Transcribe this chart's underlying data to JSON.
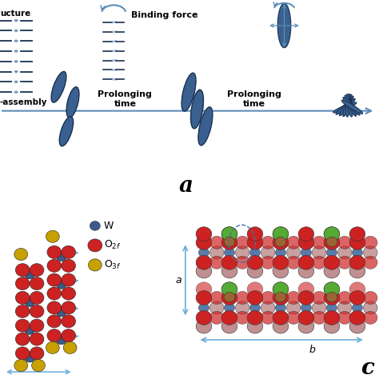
{
  "title_a": "a",
  "title_c": "c",
  "text_binding_force": "Binding force",
  "text_prolonging_time1": "Prolonging\ntime",
  "text_prolonging_time2": "Prolonging\ntime",
  "legend_w": "W",
  "legend_o2f": "O$_{2f}$",
  "legend_o3f": "O$_{3f}$",
  "legend_w_color": "#3d5a8a",
  "legend_o2f_color": "#cc2222",
  "legend_o3f_color": "#c8a000",
  "arrow_color": "#5b8db8",
  "ellipse_fill": "#3a6090",
  "ellipse_edge": "#1a3050",
  "background": "#ffffff",
  "dim_a": "a",
  "dim_b": "b",
  "dim_color": "#6baed6",
  "layered_color": "#1a3050",
  "slab_red": "#cc2222",
  "slab_pink": "#c09090",
  "slab_green": "#55aa33",
  "slab_brown": "#996633",
  "slab_blue": "#5a7aaa"
}
